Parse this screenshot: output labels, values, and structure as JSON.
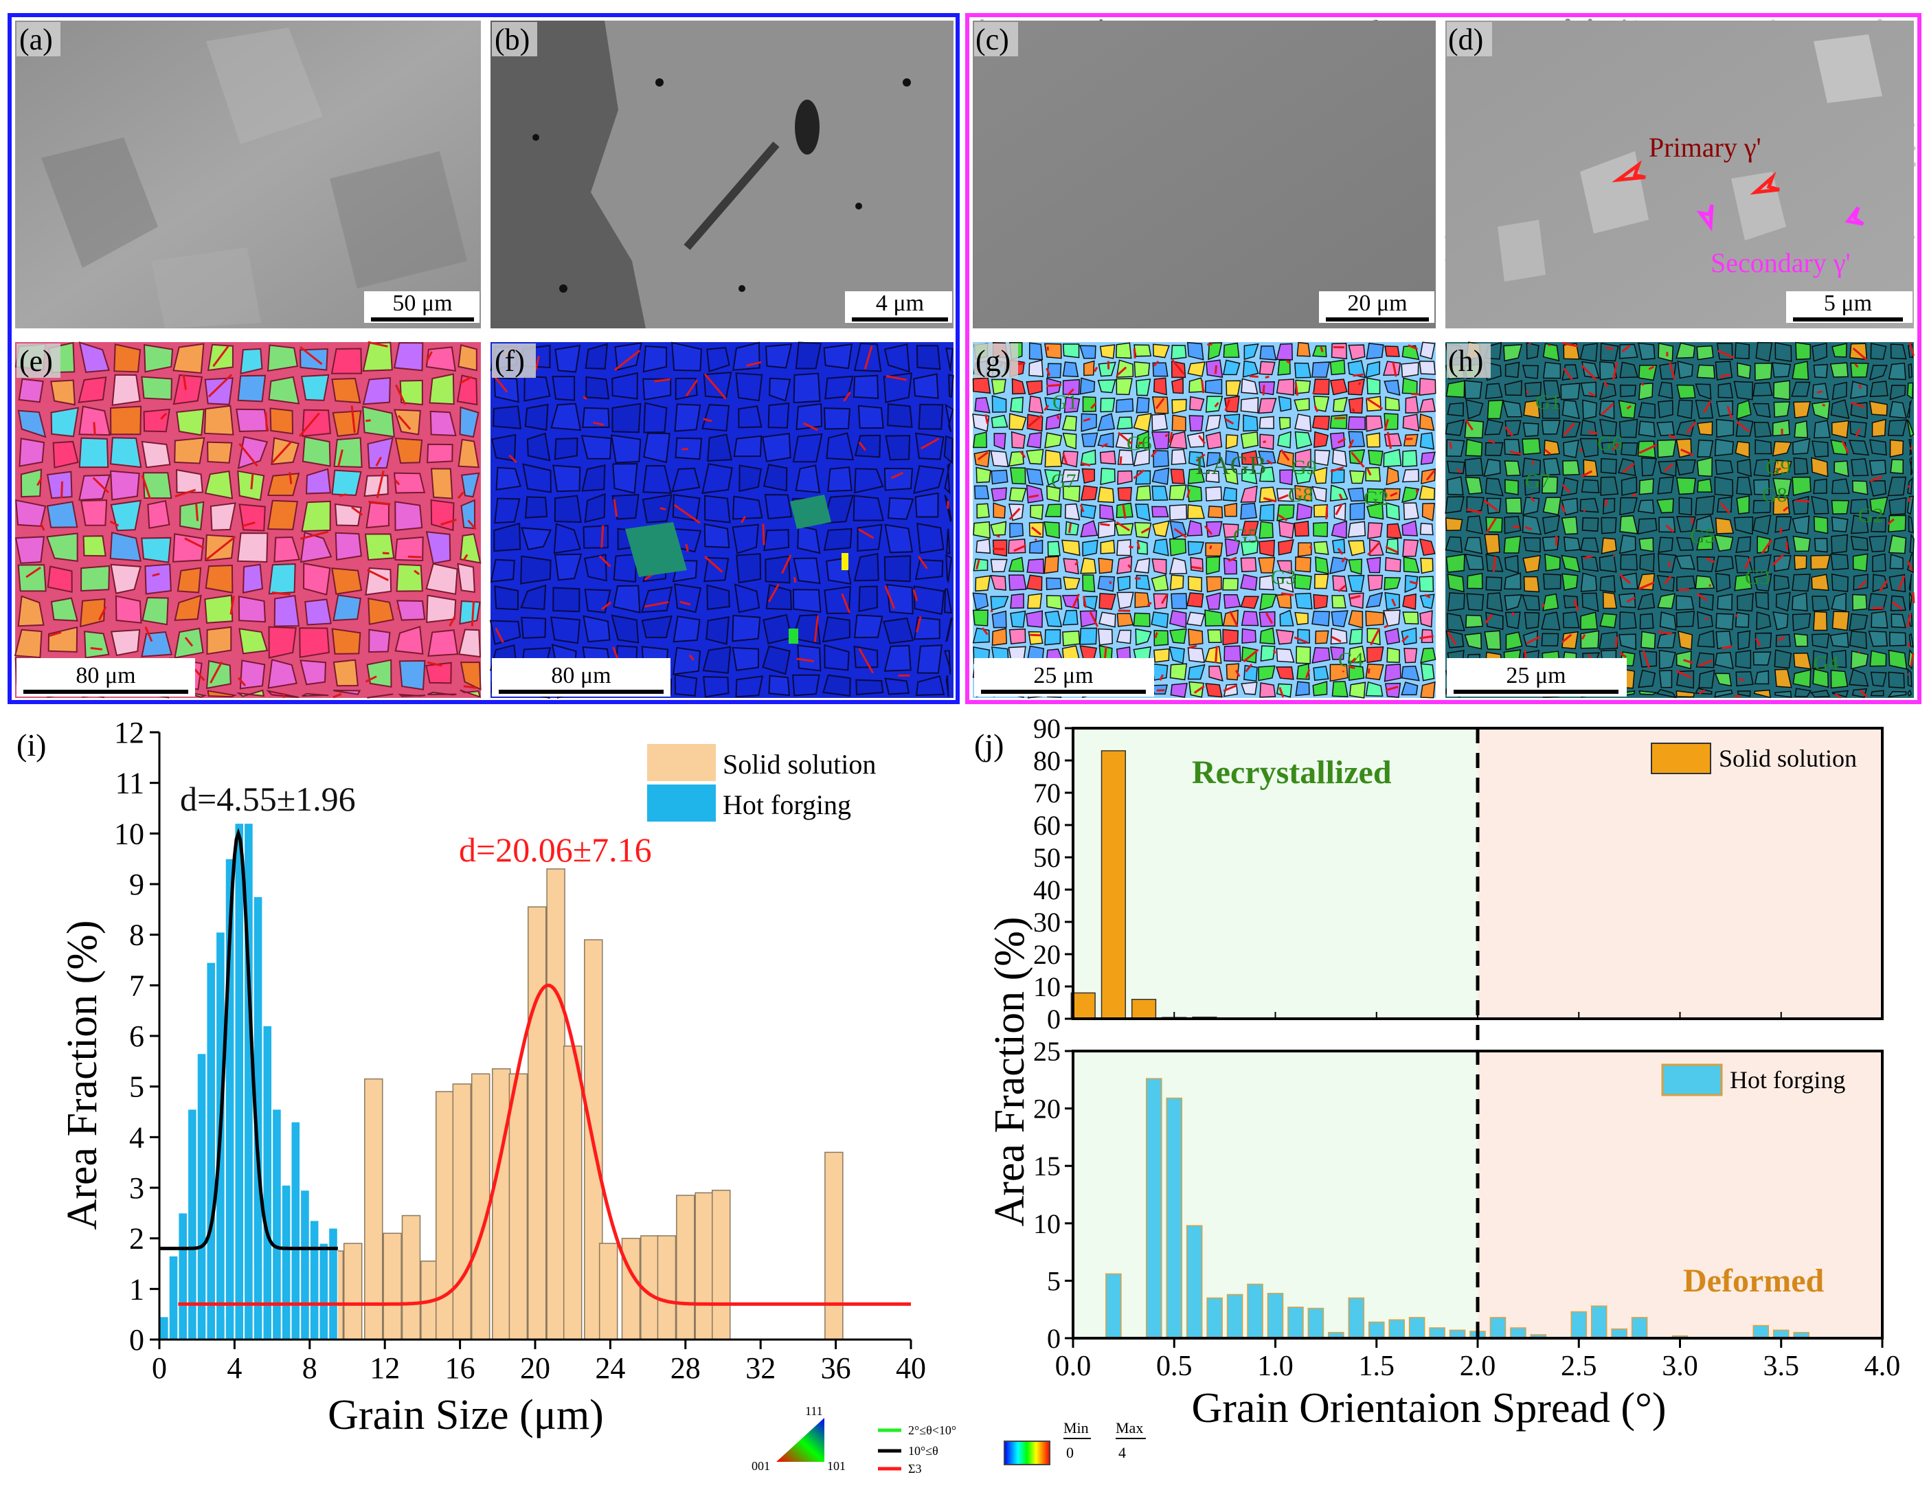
{
  "figure": {
    "panels": {
      "a": {
        "label": "(a)",
        "scale": "50 μm"
      },
      "b": {
        "label": "(b)",
        "scale": "4 μm"
      },
      "c": {
        "label": "(c)",
        "scale": "20 μm"
      },
      "d": {
        "label": "(d)",
        "scale": "5 μm",
        "primary": "Primary γ'",
        "secondary": "Secondary γ'"
      },
      "e": {
        "label": "(e)",
        "scale": "80 μm"
      },
      "f": {
        "label": "(f)",
        "scale": "80 μm"
      },
      "g": {
        "label": "(g)",
        "scale": "25 μm",
        "grains": [
          "G1",
          "G6",
          "G7",
          "LAGB",
          "G9",
          "G8",
          "G2",
          "G5",
          "G3",
          "G4"
        ]
      },
      "h": {
        "label": "(h)",
        "scale": "25 μm",
        "grains": [
          "G1",
          "G6",
          "G7",
          "G9",
          "G8",
          "G2",
          "G5",
          "G3",
          "G4"
        ]
      },
      "i": {
        "label": "(i)"
      },
      "j": {
        "label": "(j)"
      }
    },
    "legend_bottom": {
      "ipf_111": "111",
      "ipf_001": "001",
      "ipf_101": "101",
      "lagb": "2°≤θ<10°",
      "hagb": "10°≤θ",
      "twin": "Σ3",
      "min_label": "Min",
      "min_val": "0",
      "max_label": "Max",
      "max_val": "4"
    },
    "colors": {
      "blue_frame": "#1a1aff",
      "magenta_frame": "#ff33ff",
      "solid": "#f9cf9c",
      "hot": "#1fb4ea",
      "fit_red": "#ff1a1a",
      "gos_solid": "#f2a116",
      "gos_hot": "#4fc9ec",
      "recryst_bg": "#eefbee",
      "deform_bg": "#fdece4"
    }
  },
  "chart_data": [
    {
      "id": "i",
      "type": "bar",
      "xlabel": "Grain Size (μm)",
      "ylabel": "Area Fraction (%)",
      "xlim": [
        0,
        40
      ],
      "ylim": [
        0,
        12
      ],
      "xticks": [
        "0",
        "4",
        "8",
        "12",
        "16",
        "20",
        "24",
        "28",
        "32",
        "36",
        "40"
      ],
      "yticks": [
        "0",
        "1",
        "2",
        "3",
        "4",
        "5",
        "6",
        "7",
        "8",
        "9",
        "10",
        "11",
        "12"
      ],
      "legend": [
        "Solid solution",
        "Hot forging"
      ],
      "annotations": {
        "hot_fit": "d=4.55±1.96",
        "solid_fit": "d=20.06±7.16"
      },
      "series": [
        {
          "name": "Solid solution",
          "x": [
            1.9,
            3.0,
            4.0,
            5.3,
            6.2,
            7.0,
            8.3,
            9.3,
            10.3,
            11.4,
            12.4,
            13.4,
            14.4,
            15.2,
            16.1,
            17.1,
            18.2,
            19.1,
            20.1,
            21.1,
            22.0,
            23.1,
            23.9,
            25.1,
            26.1,
            27.0,
            28.0,
            29.0,
            29.9,
            30.9,
            35.9
          ],
          "values": [
            0.2,
            0.3,
            0.4,
            1.4,
            1.3,
            1.35,
            1.45,
            1.75,
            1.9,
            5.15,
            2.1,
            2.45,
            1.55,
            4.9,
            5.05,
            5.25,
            5.35,
            5.25,
            8.55,
            9.3,
            5.8,
            7.9,
            1.9,
            2.0,
            2.05,
            2.05,
            2.85,
            2.9,
            2.95,
            0,
            3.7
          ]
        },
        {
          "name": "Hot forging",
          "x": [
            0.25,
            0.75,
            1.25,
            1.75,
            2.25,
            2.75,
            3.25,
            3.75,
            4.25,
            4.75,
            5.25,
            5.75,
            6.25,
            6.75,
            7.25,
            7.75,
            8.25,
            8.75,
            9.25
          ],
          "values": [
            0.45,
            1.65,
            2.5,
            4.55,
            5.65,
            7.45,
            8.05,
            9.5,
            10.2,
            10.2,
            8.75,
            6.2,
            4.55,
            3.05,
            4.3,
            2.95,
            2.35,
            1.9,
            2.2
          ]
        }
      ],
      "fits": [
        {
          "name": "hot_fit",
          "y0": 1.8,
          "A": 8.2,
          "xc": 4.2,
          "w": 1.2,
          "xrange": [
            0,
            9.5
          ],
          "color": "#000000"
        },
        {
          "name": "solid_fit",
          "y0": 0.7,
          "A": 6.3,
          "xc": 20.7,
          "w": 4.1,
          "xrange": [
            1.0,
            40
          ],
          "color": "#ff1a1a"
        }
      ]
    },
    {
      "id": "j_top",
      "type": "bar",
      "xlabel": "",
      "ylabel": "Area Fraction (%)",
      "xlim": [
        0,
        4
      ],
      "ylim": [
        0,
        90
      ],
      "yticks": [
        "0",
        "10",
        "20",
        "30",
        "40",
        "50",
        "60",
        "70",
        "80",
        "90"
      ],
      "legend": [
        "Solid solution"
      ],
      "region_labels": {
        "left": "Recrystallized"
      },
      "series": [
        {
          "name": "Solid solution",
          "x": [
            0.05,
            0.2,
            0.35,
            0.5,
            0.65
          ],
          "values": [
            8,
            83,
            6,
            0.4,
            0.5
          ]
        }
      ]
    },
    {
      "id": "j_bottom",
      "type": "bar",
      "xlabel": "Grain Orientaion Spread (°)",
      "ylabel": "Area Fraction (%)",
      "xlim": [
        0,
        4
      ],
      "ylim": [
        0,
        25
      ],
      "xticks": [
        "0.0",
        "0.5",
        "1.0",
        "1.5",
        "2.0",
        "2.5",
        "3.0",
        "3.5",
        "4.0"
      ],
      "yticks": [
        "0",
        "5",
        "10",
        "15",
        "20",
        "25"
      ],
      "legend": [
        "Hot forging"
      ],
      "region_labels": {
        "right": "Deformed"
      },
      "threshold": 2.0,
      "series": [
        {
          "name": "Hot forging",
          "x": [
            0.2,
            0.3,
            0.4,
            0.5,
            0.6,
            0.7,
            0.8,
            0.9,
            1.0,
            1.1,
            1.2,
            1.3,
            1.4,
            1.5,
            1.6,
            1.7,
            1.8,
            1.9,
            2.0,
            2.1,
            2.2,
            2.3,
            2.4,
            2.5,
            2.6,
            2.7,
            2.8,
            2.9,
            3.0,
            3.1,
            3.2,
            3.3,
            3.4,
            3.5,
            3.6,
            3.7
          ],
          "values": [
            5.6,
            0,
            22.6,
            20.9,
            9.8,
            3.5,
            3.8,
            4.7,
            3.9,
            2.7,
            2.6,
            0.5,
            3.5,
            1.4,
            1.6,
            1.8,
            0.9,
            0.7,
            0.6,
            1.8,
            0.9,
            0.3,
            0,
            2.3,
            2.8,
            0.8,
            1.8,
            0,
            0.2,
            0,
            0,
            0,
            1.1,
            0.7,
            0.5,
            0
          ]
        }
      ]
    }
  ]
}
